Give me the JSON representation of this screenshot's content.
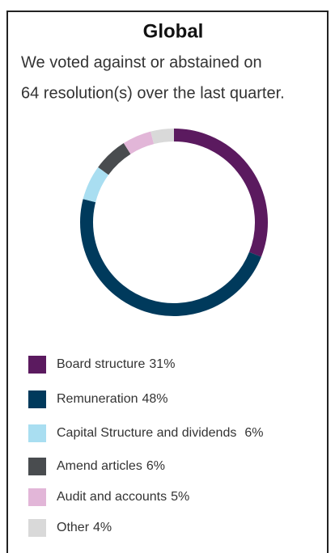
{
  "chart_data": {
    "type": "pie",
    "title": "Global",
    "subtitle": [
      "We voted against or abstained on",
      "64 resolution(s) over the last quarter."
    ],
    "categories": [
      "Board structure",
      "Remuneration",
      "Capital Structure and dividends",
      "Amend articles",
      "Audit and accounts",
      "Other"
    ],
    "values": [
      31,
      48,
      6,
      6,
      5,
      4
    ],
    "value_labels": [
      "31%",
      "48%",
      "6%",
      "6%",
      "5%",
      "4%"
    ],
    "colors": [
      "#5b1a5f",
      "#003a5c",
      "#a9def1",
      "#494c4f",
      "#e2b6d8",
      "#d9d9d9"
    ],
    "donut": true
  }
}
